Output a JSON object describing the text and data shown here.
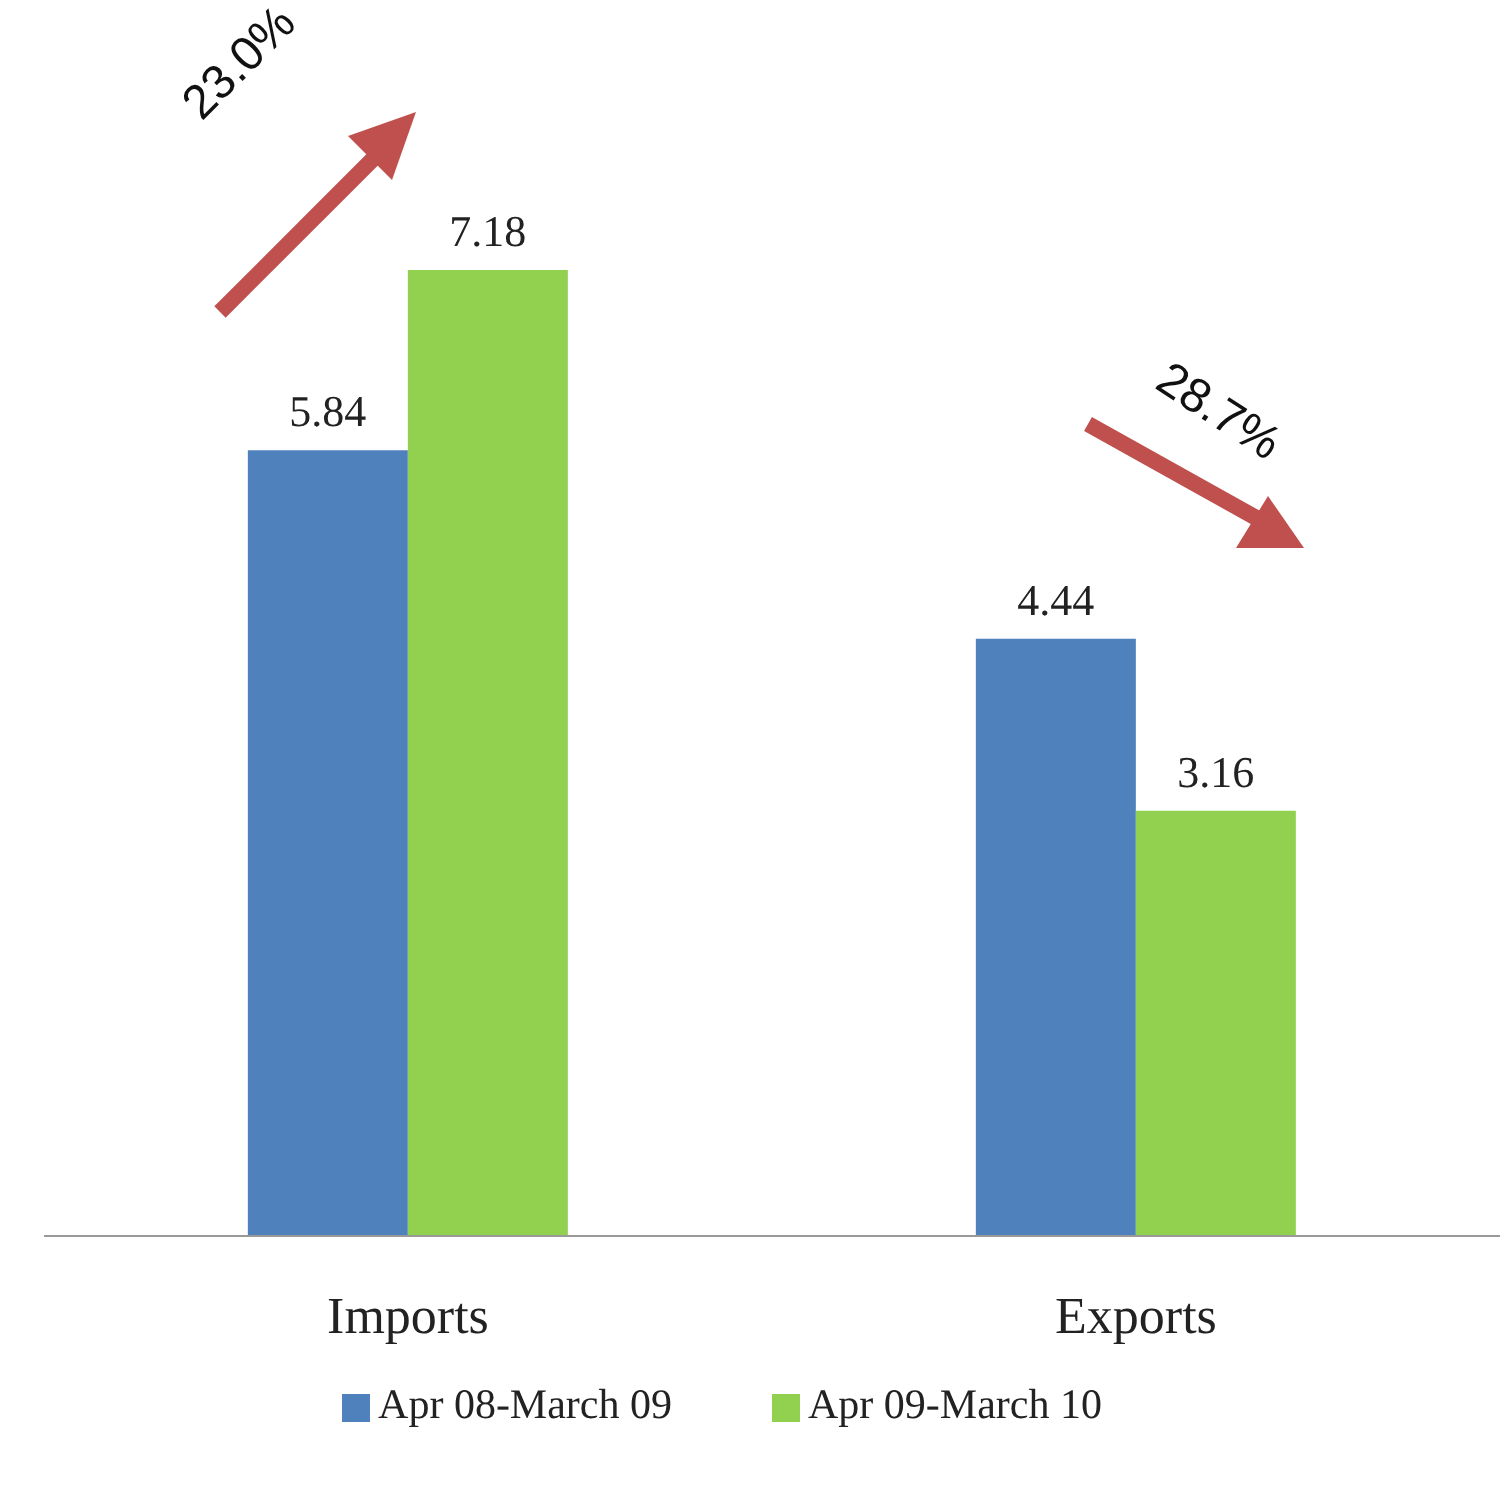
{
  "chart_data": {
    "type": "bar",
    "categories": [
      "Imports",
      "Exports"
    ],
    "series": [
      {
        "name": "Apr 08-March 09",
        "color": "#4f81bd",
        "values": [
          5.84,
          4.44
        ]
      },
      {
        "name": "Apr 09-March 10",
        "color": "#92d050",
        "values": [
          7.18,
          3.16
        ]
      }
    ],
    "data_labels": true,
    "legend": "bottom",
    "grid": false,
    "tick_labels": "x",
    "annotations": [
      "23.0%",
      "28.7%"
    ]
  }
}
